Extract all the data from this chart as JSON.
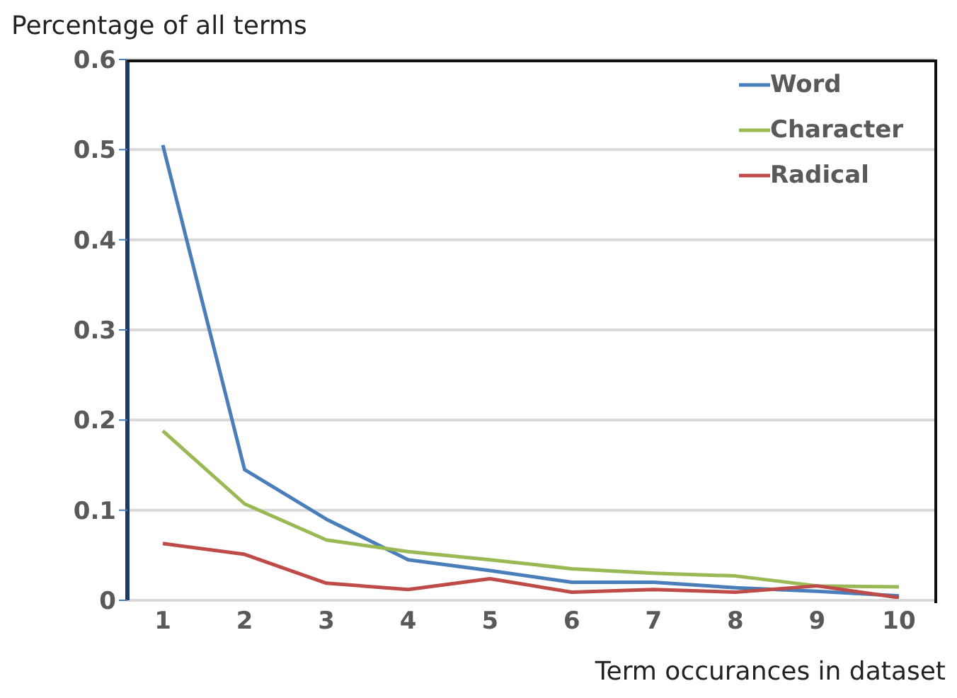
{
  "chart_data": {
    "type": "line",
    "ylabel": "Percentage of all terms",
    "xlabel": "Term occurances in dataset",
    "categories": [
      "1",
      "2",
      "3",
      "4",
      "5",
      "6",
      "7",
      "8",
      "9",
      "10"
    ],
    "series": [
      {
        "name": "Word",
        "color": "#4a7ebb",
        "values": [
          0.505,
          0.145,
          0.09,
          0.045,
          0.033,
          0.02,
          0.02,
          0.014,
          0.01,
          0.005
        ]
      },
      {
        "name": "Character",
        "color": "#98b954",
        "values": [
          0.188,
          0.107,
          0.067,
          0.054,
          0.045,
          0.035,
          0.03,
          0.027,
          0.016,
          0.015
        ]
      },
      {
        "name": "Radical",
        "color": "#be4b48",
        "values": [
          0.063,
          0.051,
          0.019,
          0.012,
          0.024,
          0.009,
          0.012,
          0.009,
          0.016,
          0.003
        ]
      }
    ],
    "ylim": [
      0,
      0.6
    ],
    "yticks": [
      0,
      0.1,
      0.2,
      0.3,
      0.4,
      0.5,
      0.6
    ],
    "grid": "y",
    "legend": "top right",
    "marker": "none",
    "line_style": "solid"
  }
}
